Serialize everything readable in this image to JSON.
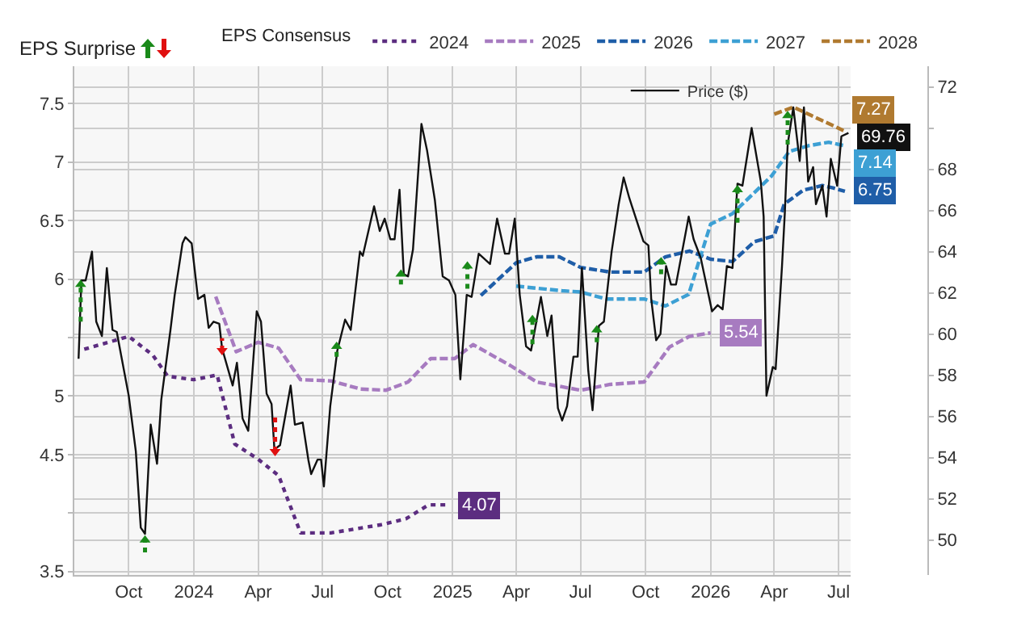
{
  "chart_data": {
    "type": "line",
    "legend_title": "EPS Consensus",
    "annotations": [
      "EPS Surprise"
    ],
    "grid": true,
    "legend": "top right",
    "xlim": [
      "2023-07-16",
      "2026-07-18"
    ],
    "xticks": [
      {
        "value": "2023-10-01",
        "label": "Oct"
      },
      {
        "value": "2024-01-01",
        "label": "2024"
      },
      {
        "value": "2024-04-01",
        "label": "Apr"
      },
      {
        "value": "2024-07-01",
        "label": "Jul"
      },
      {
        "value": "2024-10-01",
        "label": "Oct"
      },
      {
        "value": "2025-01-01",
        "label": "2025"
      },
      {
        "value": "2025-04-01",
        "label": "Apr"
      },
      {
        "value": "2025-07-01",
        "label": "Jul"
      },
      {
        "value": "2025-10-01",
        "label": "Oct"
      },
      {
        "value": "2026-01-01",
        "label": "2026"
      },
      {
        "value": "2026-04-01",
        "label": "Apr"
      },
      {
        "value": "2026-07-01",
        "label": "Jul"
      }
    ],
    "ylim": [
      3.47,
      7.82
    ],
    "yticks": [
      3.5,
      {
        "value": 4,
        "label": null
      },
      4.5,
      5,
      {
        "value": 5.5,
        "label": null
      },
      6,
      6.5,
      7,
      7.5
    ],
    "y2lim": [
      48.3,
      73.0
    ],
    "y2ticks": [
      50,
      52,
      54,
      56,
      58,
      60,
      62,
      64,
      66,
      68,
      {
        "value": 70,
        "label": null
      },
      72
    ],
    "series": [
      {
        "name": "2024",
        "line_style": "dotted",
        "color": "#5c2d80",
        "x": [
          "2023-07-30",
          "2023-10-01",
          "2023-11-04",
          "2023-11-25",
          "2024-01-01",
          "2024-02-03",
          "2024-02-28",
          "2024-04-01",
          "2024-04-30",
          "2024-05-31",
          "2024-07-13",
          "2024-09-22",
          "2024-10-27",
          "2024-11-28",
          "2024-12-28"
        ],
        "values": [
          5.4,
          5.51,
          5.35,
          5.17,
          5.14,
          5.18,
          4.59,
          4.46,
          4.32,
          3.83,
          3.83,
          3.9,
          3.95,
          4.07,
          4.07
        ],
        "value_labels": [
          null,
          null,
          null,
          null,
          null,
          null,
          null,
          null,
          null,
          null,
          null,
          null,
          null,
          null,
          "4.07"
        ]
      },
      {
        "name": "2025",
        "line_style": "dashed",
        "color": "#a77bc0",
        "x": [
          "2024-02-01",
          "2024-03-01",
          "2024-04-01",
          "2024-04-30",
          "2024-05-31",
          "2024-07-13",
          "2024-08-24",
          "2024-09-29",
          "2024-10-30",
          "2024-12-01",
          "2025-01-04",
          "2025-01-30",
          "2025-03-24",
          "2025-04-30",
          "2025-07-01",
          "2025-08-12",
          "2025-09-29",
          "2025-11-04",
          "2025-12-02",
          "2026-01-01"
        ],
        "values": [
          5.85,
          5.38,
          5.46,
          5.41,
          5.14,
          5.13,
          5.06,
          5.05,
          5.12,
          5.32,
          5.32,
          5.44,
          5.26,
          5.12,
          5.05,
          5.1,
          5.12,
          5.42,
          5.51,
          5.54
        ],
        "value_labels": [
          null,
          null,
          null,
          null,
          null,
          null,
          null,
          null,
          null,
          null,
          null,
          null,
          null,
          null,
          null,
          null,
          null,
          null,
          null,
          "5.54"
        ]
      },
      {
        "name": "2026",
        "line_style": "dashed",
        "color": "#1f5ea8",
        "x": [
          "2025-02-10",
          "2025-04-01",
          "2025-04-30",
          "2025-06-01",
          "2025-07-01",
          "2025-08-12",
          "2025-09-29",
          "2025-10-29",
          "2025-12-02",
          "2026-01-01",
          "2026-02-01",
          "2026-03-04",
          "2026-04-01",
          "2026-04-15",
          "2026-05-12",
          "2026-06-08",
          "2026-06-23",
          "2026-07-10"
        ],
        "values": [
          5.86,
          6.14,
          6.19,
          6.19,
          6.1,
          6.06,
          6.06,
          6.19,
          6.24,
          6.17,
          6.15,
          6.32,
          6.37,
          6.64,
          6.76,
          6.8,
          6.78,
          6.75
        ],
        "value_labels": [
          null,
          null,
          null,
          null,
          null,
          null,
          null,
          null,
          null,
          null,
          null,
          null,
          null,
          null,
          null,
          null,
          null,
          "6.75"
        ]
      },
      {
        "name": "2027",
        "line_style": "dashed",
        "color": "#3da0d4",
        "x": [
          "2025-04-01",
          "2025-06-05",
          "2025-07-01",
          "2025-08-06",
          "2025-09-29",
          "2025-10-29",
          "2025-12-01",
          "2026-01-01",
          "2026-02-01",
          "2026-03-28",
          "2026-04-22",
          "2026-05-19",
          "2026-06-17",
          "2026-07-10"
        ],
        "values": [
          5.94,
          5.9,
          5.89,
          5.83,
          5.83,
          5.77,
          5.87,
          6.47,
          6.56,
          6.88,
          7.09,
          7.14,
          7.17,
          7.14
        ],
        "value_labels": [
          null,
          null,
          null,
          null,
          null,
          null,
          null,
          null,
          null,
          null,
          null,
          null,
          null,
          "7.14"
        ]
      },
      {
        "name": "2028",
        "line_style": "dashed",
        "color": "#b07a30",
        "x": [
          "2026-04-01",
          "2026-04-28",
          "2026-05-23",
          "2026-07-08"
        ],
        "values": [
          7.41,
          7.47,
          7.4,
          7.27
        ],
        "value_labels": [
          null,
          null,
          null,
          "7.27"
        ]
      },
      {
        "name": "Price ($)",
        "axis": "y2",
        "line_style": "solid",
        "color": "#111111",
        "x": [
          "2023-07-22",
          "2023-07-26",
          "2023-08-01",
          "2023-08-10",
          "2023-08-16",
          "2023-08-24",
          "2023-08-31",
          "2023-09-08",
          "2023-09-14",
          "2023-10-01",
          "2023-10-11",
          "2023-10-18",
          "2023-10-24",
          "2023-11-01",
          "2023-11-10",
          "2023-11-16",
          "2023-11-29",
          "2023-12-05",
          "2023-12-16",
          "2023-12-20",
          "2023-12-29",
          "2024-01-07",
          "2024-01-16",
          "2024-01-22",
          "2024-01-29",
          "2024-02-06",
          "2024-02-10",
          "2024-02-25",
          "2024-03-02",
          "2024-03-10",
          "2024-03-18",
          "2024-03-30",
          "2024-04-05",
          "2024-04-13",
          "2024-04-20",
          "2024-04-24",
          "2024-05-02",
          "2024-05-17",
          "2024-05-23",
          "2024-06-03",
          "2024-06-11",
          "2024-06-15",
          "2024-06-24",
          "2024-06-29",
          "2024-07-03",
          "2024-07-12",
          "2024-07-22",
          "2024-08-02",
          "2024-08-10",
          "2024-08-23",
          "2024-08-27",
          "2024-09-12",
          "2024-09-20",
          "2024-09-27",
          "2024-10-05",
          "2024-10-11",
          "2024-10-18",
          "2024-10-24",
          "2024-10-30",
          "2024-11-06",
          "2024-11-18",
          "2024-11-26",
          "2024-12-07",
          "2024-12-18",
          "2024-12-27",
          "2025-01-05",
          "2025-01-12",
          "2025-01-21",
          "2025-01-28",
          "2025-02-07",
          "2025-02-23",
          "2025-03-05",
          "2025-03-16",
          "2025-03-22",
          "2025-03-30",
          "2025-04-06",
          "2025-04-15",
          "2025-04-22",
          "2025-05-06",
          "2025-05-15",
          "2025-05-21",
          "2025-05-30",
          "2025-06-05",
          "2025-06-12",
          "2025-06-21",
          "2025-06-27",
          "2025-07-03",
          "2025-07-12",
          "2025-07-18",
          "2025-07-27",
          "2025-08-03",
          "2025-08-14",
          "2025-08-24",
          "2025-08-31",
          "2025-09-08",
          "2025-09-28",
          "2025-10-05",
          "2025-10-09",
          "2025-10-16",
          "2025-10-22",
          "2025-10-30",
          "2025-11-06",
          "2025-11-13",
          "2025-12-01",
          "2025-12-08",
          "2025-12-18",
          "2026-01-03",
          "2026-01-11",
          "2026-01-18",
          "2026-01-24",
          "2026-02-01",
          "2026-02-08",
          "2026-02-15",
          "2026-02-28",
          "2026-03-13",
          "2026-03-17",
          "2026-03-21",
          "2026-03-30",
          "2026-04-03",
          "2026-04-12",
          "2026-04-16",
          "2026-04-20",
          "2026-04-28",
          "2026-05-07",
          "2026-05-13",
          "2026-05-19",
          "2026-05-26",
          "2026-05-30",
          "2026-06-08",
          "2026-06-14",
          "2026-06-20",
          "2026-06-29",
          "2026-07-05",
          "2026-07-15"
        ],
        "values": [
          58.8,
          62.6,
          62.6,
          64.0,
          60.6,
          59.9,
          63.2,
          60.2,
          60.1,
          57.0,
          54.3,
          50.6,
          50.3,
          55.6,
          53.7,
          56.8,
          60.2,
          61.9,
          64.4,
          64.7,
          64.4,
          61.7,
          61.9,
          60.3,
          60.6,
          60.5,
          59.3,
          57.5,
          58.6,
          55.9,
          55.3,
          61.1,
          60.6,
          57.1,
          56.6,
          54.4,
          54.6,
          57.5,
          55.6,
          55.7,
          53.9,
          53.2,
          53.9,
          53.9,
          52.6,
          56.5,
          59.2,
          60.7,
          60.2,
          64.0,
          63.8,
          66.2,
          65.0,
          65.6,
          64.6,
          64.6,
          67.0,
          62.9,
          62.8,
          64.1,
          70.2,
          68.9,
          66.5,
          62.8,
          62.6,
          61.9,
          57.8,
          61.9,
          61.8,
          63.9,
          63.4,
          65.6,
          63.9,
          63.9,
          65.6,
          61.9,
          59.4,
          59.2,
          61.8,
          59.9,
          60.9,
          56.4,
          55.8,
          56.5,
          58.9,
          58.9,
          63.2,
          58.2,
          56.3,
          60.4,
          60.6,
          64.0,
          66.3,
          67.6,
          66.6,
          64.5,
          64.3,
          61.7,
          59.7,
          60.0,
          63.3,
          62.4,
          62.4,
          65.7,
          64.6,
          63.7,
          61.1,
          61.4,
          61.2,
          63.3,
          63.2,
          67.3,
          67.2,
          70.0,
          67.4,
          65.7,
          57.0,
          58.4,
          58.3,
          63.3,
          65.9,
          69.2,
          71.0,
          68.4,
          71.0,
          67.4,
          68.1,
          66.3,
          67.2,
          65.7,
          68.5,
          67.2,
          69.6,
          69.76
        ],
        "value_labels": [
          null,
          null,
          null,
          null,
          null,
          null,
          null,
          null,
          null,
          null,
          null,
          null,
          null,
          null,
          null,
          null,
          null,
          null,
          null,
          null,
          null,
          null,
          null,
          null,
          null,
          null,
          null,
          null,
          null,
          null,
          null,
          null,
          null,
          null,
          null,
          null,
          null,
          null,
          null,
          null,
          null,
          null,
          null,
          null,
          null,
          null,
          null,
          null,
          null,
          null,
          null,
          null,
          null,
          null,
          null,
          null,
          null,
          null,
          null,
          null,
          null,
          null,
          null,
          null,
          null,
          null,
          null,
          null,
          null,
          null,
          null,
          null,
          null,
          null,
          null,
          null,
          null,
          null,
          null,
          null,
          null,
          null,
          null,
          null,
          null,
          null,
          null,
          null,
          null,
          null,
          null,
          null,
          null,
          null,
          null,
          null,
          null,
          null,
          null,
          null,
          null,
          null,
          null,
          null,
          null,
          null,
          null,
          null,
          null,
          null,
          null,
          null,
          null,
          null,
          null,
          null,
          null,
          null,
          null,
          null,
          null,
          null,
          null,
          null,
          null,
          null,
          null,
          null,
          null,
          null,
          null,
          null,
          null,
          "69.76"
        ]
      },
      {
        "type": "scatter",
        "axis": "y2",
        "marker": "triangle",
        "color": "#1a8a1a",
        "x": [
          "2023-07-25",
          "2023-10-24",
          "2024-07-21",
          "2024-10-20",
          "2025-01-22",
          "2025-04-24",
          "2025-07-24",
          "2025-10-23",
          "2026-02-08",
          "2026-04-20"
        ],
        "values": [
          62.4,
          50.0,
          59.4,
          62.9,
          63.3,
          60.7,
          60.2,
          63.5,
          67.0,
          70.6
        ],
        "errors": [
          [
            60.6,
            62.4
          ],
          [
            49.4,
            50.0
          ],
          [
            58.9,
            59.4
          ],
          [
            62.4,
            62.9
          ],
          [
            62.2,
            63.3
          ],
          [
            59.5,
            60.7
          ],
          [
            59.6,
            60.2
          ],
          [
            62.9,
            63.5
          ],
          [
            65.4,
            67.0
          ],
          [
            69.2,
            70.6
          ]
        ]
      },
      {
        "type": "scatter",
        "axis": "y2",
        "marker": "triangle",
        "color": "#e01010",
        "x": [
          "2024-02-10",
          "2024-04-25"
        ],
        "values": [
          59.2,
          54.3
        ],
        "errors": [
          [
            59.2,
            59.8
          ],
          [
            54.3,
            56.0
          ]
        ]
      }
    ]
  }
}
